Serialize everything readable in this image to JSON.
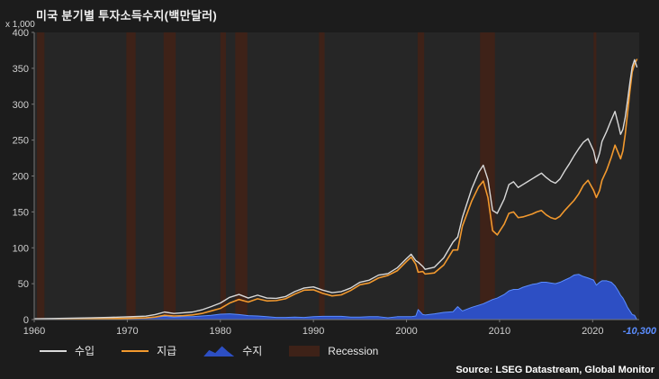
{
  "title": "미국 분기별 투자소득수지(백만달러)",
  "axis": {
    "y_unit": "x 1,000",
    "y_ticks": [
      0,
      50,
      100,
      150,
      200,
      250,
      300,
      350,
      400
    ],
    "x_ticks": [
      1960,
      1970,
      1980,
      1990,
      2000,
      2010,
      2020
    ]
  },
  "legend": [
    {
      "label": "수입",
      "color": "#d9d9d9",
      "type": "line"
    },
    {
      "label": "지급",
      "color": "#f2992e",
      "type": "line"
    },
    {
      "label": "수지",
      "color": "#2d4fc4",
      "type": "area"
    },
    {
      "label": "Recession",
      "color": "#3e2218",
      "type": "band"
    }
  ],
  "annotation": {
    "text": "-10,300",
    "color": "#5b8dff"
  },
  "source": "Source: LSEG Datastream, Global Monitor",
  "colors": {
    "page_bg": "#1c1c1c",
    "plot_bg": "#262626",
    "recession_band": "#3e2218",
    "receipts_line": "#d9d9d9",
    "payments_line": "#f2992e",
    "balance_fill": "#2d4fc4",
    "balance_stroke": "#5b8dff",
    "axis_line": "#777777",
    "tick_text": "#cfcfcf"
  },
  "chart_data": {
    "type": "line",
    "title": "미국 분기별 투자소득수지(백만달러)",
    "ylabel": "x 1,000 (백만달러)",
    "ylim": [
      0,
      400
    ],
    "xlim": [
      1960,
      2025
    ],
    "grid": false,
    "legend_position": "bottom",
    "x": [
      1960,
      1962,
      1964,
      1966,
      1968,
      1970,
      1972,
      1973,
      1974,
      1975,
      1976,
      1977,
      1978,
      1979,
      1980,
      1981,
      1982,
      1983,
      1984,
      1985,
      1986,
      1987,
      1988,
      1989,
      1990,
      1991,
      1992,
      1993,
      1994,
      1995,
      1996,
      1997,
      1998,
      1999,
      2000,
      2000.5,
      2001,
      2001.25,
      2001.75,
      2002,
      2003,
      2004,
      2005,
      2005.5,
      2006,
      2007,
      2007.75,
      2008.25,
      2008.75,
      2009.25,
      2009.75,
      2010.5,
      2011,
      2011.5,
      2012,
      2012.5,
      2013,
      2013.5,
      2014,
      2014.5,
      2015,
      2015.5,
      2016,
      2016.5,
      2017,
      2017.5,
      2018,
      2018.5,
      2019,
      2019.5,
      2020.1,
      2020.4,
      2020.75,
      2021,
      2021.5,
      2022,
      2022.4,
      2022.75,
      2023,
      2023.25,
      2023.5,
      2023.75,
      2024,
      2024.25,
      2024.5,
      2024.75
    ],
    "series": [
      {
        "name": "수입",
        "type": "line",
        "color": "#d9d9d9",
        "values": [
          1.2,
          1.5,
          1.9,
          2.4,
          3.0,
          3.8,
          4.8,
          7.0,
          10.5,
          8.5,
          9.5,
          10.5,
          13.5,
          18.0,
          23.0,
          31.0,
          35.0,
          30.0,
          34.0,
          30.0,
          29.5,
          32.0,
          39.0,
          44.0,
          45.5,
          41.0,
          37.5,
          39.0,
          44.0,
          52.0,
          55.0,
          62.0,
          64.0,
          72.0,
          85.0,
          91.0,
          82.0,
          80.0,
          74.0,
          70.0,
          73.0,
          86.0,
          108.0,
          115.0,
          142.0,
          182.0,
          205.0,
          215.0,
          195.0,
          152.0,
          148.0,
          168.0,
          188.0,
          192.0,
          184.0,
          188.0,
          192.0,
          196.0,
          200.0,
          204.0,
          198.0,
          193.0,
          190.0,
          196.0,
          207.0,
          217.0,
          228.0,
          238.0,
          247.0,
          252.0,
          235.0,
          218.0,
          232.0,
          248.0,
          262.0,
          278.0,
          290.0,
          272.0,
          258.0,
          265.0,
          282.0,
          305.0,
          330.0,
          352.0,
          362.0,
          352.0
        ]
      },
      {
        "name": "지급",
        "type": "line",
        "color": "#f2992e",
        "values": [
          0.5,
          0.6,
          0.7,
          0.9,
          1.3,
          1.8,
          2.4,
          3.5,
          6.0,
          5.0,
          5.5,
          6.5,
          8.5,
          12.0,
          15.5,
          23.0,
          28.0,
          24.5,
          29.0,
          26.0,
          26.5,
          29.0,
          35.5,
          41.0,
          41.5,
          36.5,
          33.0,
          34.5,
          40.5,
          48.5,
          51.0,
          58.0,
          61.5,
          68.0,
          81.0,
          87.0,
          77.0,
          66.0,
          67.0,
          63.5,
          65.0,
          76.0,
          97.0,
          97.0,
          130.0,
          165.0,
          185.0,
          193.0,
          170.0,
          124.0,
          118.0,
          133.0,
          148.0,
          150.0,
          142.0,
          143.0,
          145.0,
          147.0,
          150.0,
          152.0,
          146.0,
          142.0,
          140.0,
          144.0,
          152.0,
          159.0,
          166.0,
          175.0,
          187.0,
          194.0,
          180.0,
          170.0,
          180.0,
          194.0,
          208.0,
          226.0,
          243.0,
          232.0,
          224.0,
          235.0,
          258.0,
          288.0,
          318.0,
          345.0,
          356.0,
          362.3
        ]
      },
      {
        "name": "수지",
        "type": "area",
        "color": "#2d4fc4",
        "last_value": -10.3,
        "values": [
          0.7,
          0.9,
          1.2,
          1.5,
          1.7,
          2.0,
          2.4,
          3.5,
          4.5,
          3.5,
          4.0,
          4.0,
          5.0,
          6.0,
          7.5,
          8.0,
          7.0,
          5.5,
          5.0,
          4.0,
          3.0,
          3.0,
          3.5,
          3.0,
          4.0,
          4.5,
          4.5,
          4.5,
          3.5,
          3.5,
          4.0,
          4.0,
          2.5,
          4.0,
          4.0,
          4.0,
          5.0,
          14.0,
          7.0,
          6.5,
          8.0,
          10.0,
          11.0,
          18.0,
          12.0,
          17.0,
          20.0,
          22.0,
          25.0,
          28.0,
          30.0,
          35.0,
          40.0,
          42.0,
          42.0,
          45.0,
          47.0,
          49.0,
          50.0,
          52.0,
          52.0,
          51.0,
          50.0,
          52.0,
          55.0,
          58.0,
          62.0,
          63.0,
          60.0,
          58.0,
          55.0,
          48.0,
          52.0,
          54.0,
          54.0,
          52.0,
          47.0,
          40.0,
          34.0,
          30.0,
          24.0,
          17.0,
          12.0,
          7.0,
          6.0,
          -10.3
        ]
      }
    ],
    "recessions": [
      [
        1960.3,
        1961.1
      ],
      [
        1969.9,
        1970.9
      ],
      [
        1973.9,
        1975.2
      ],
      [
        1980.0,
        1980.6
      ],
      [
        1981.6,
        1982.9
      ],
      [
        1990.6,
        1991.2
      ],
      [
        2001.2,
        2001.9
      ],
      [
        2007.9,
        2009.5
      ],
      [
        2020.1,
        2020.4
      ]
    ]
  }
}
